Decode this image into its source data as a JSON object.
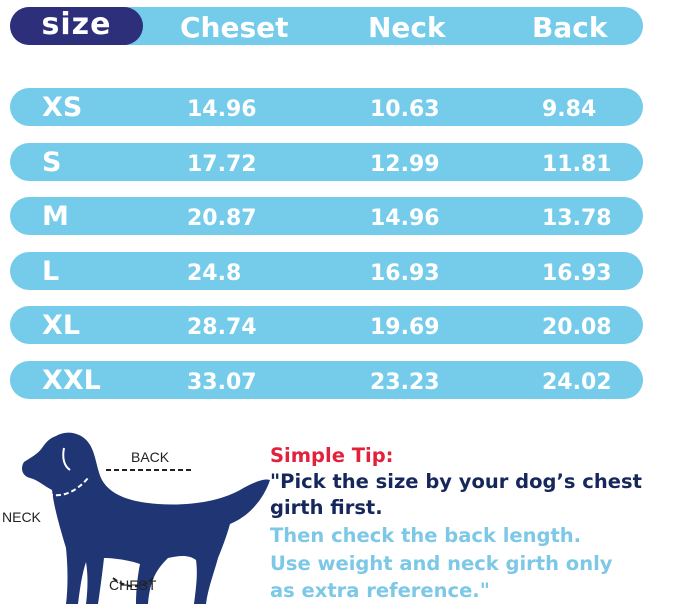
{
  "header": {
    "size": "size",
    "columns": [
      "Cheset",
      "Neck",
      "Back"
    ]
  },
  "rows": [
    {
      "size": "XS",
      "chest": "14.96",
      "neck": "10.63",
      "back": "9.84"
    },
    {
      "size": "S",
      "chest": "17.72",
      "neck": "12.99",
      "back": "11.81"
    },
    {
      "size": "M",
      "chest": "20.87",
      "neck": "14.96",
      "back": "13.78"
    },
    {
      "size": "L",
      "chest": "24.8",
      "neck": "16.93",
      "back": "16.93"
    },
    {
      "size": "XL",
      "chest": "28.74",
      "neck": "19.69",
      "back": "20.08"
    },
    {
      "size": "XXL",
      "chest": "33.07",
      "neck": "23.23",
      "back": "24.02"
    }
  ],
  "diagram": {
    "back": "BACK",
    "neck": "NECK",
    "chest": "CHEST"
  },
  "tip": {
    "title": "Simple Tip:",
    "line1": "\"Pick the size by your dog’s chest",
    "line2": "girth first.",
    "line3": "Then check the back length.",
    "line4": "Use weight and neck girth only",
    "line5": "as extra reference.\""
  },
  "colors": {
    "bar": "#74cbea",
    "size_pill": "#2e2f7b",
    "dog": "#1f3574",
    "tip_title": "#e2223c",
    "tip_dark": "#16275c",
    "tip_light": "#7cc8e6"
  }
}
